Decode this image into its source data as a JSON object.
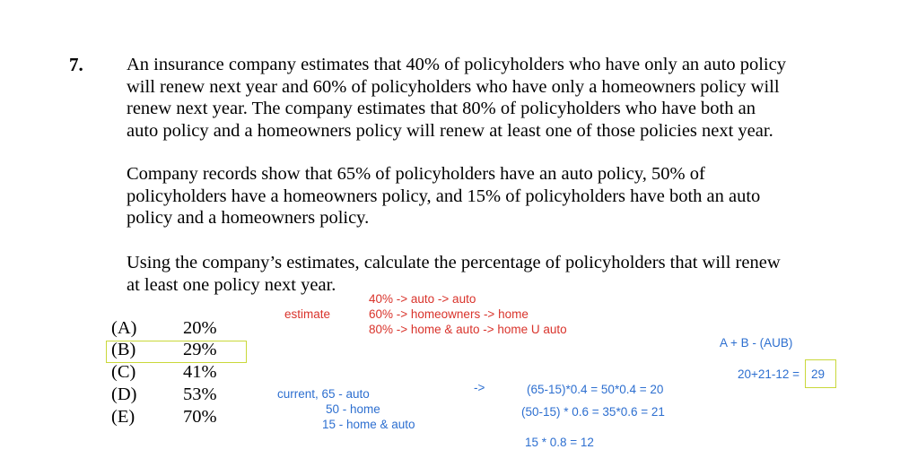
{
  "question": {
    "number": "7.",
    "paragraph1": [
      "An insurance company estimates that 40% of policyholders who have only an auto policy",
      "will renew next year and 60% of policyholders who have only a homeowners policy will",
      "renew next year.  The company estimates that 80% of policyholders who have both an",
      "auto policy and a homeowners policy will renew at least one of those policies next year."
    ],
    "paragraph2": [
      "Company records show that 65% of policyholders have an auto policy, 50% of",
      "policyholders have a homeowners policy, and 15% of policyholders have both an auto",
      "policy and a homeowners policy."
    ],
    "paragraph3": [
      "Using the company’s estimates, calculate the percentage of policyholders that will renew",
      "at least one policy next year."
    ]
  },
  "choices": [
    {
      "letter": "(A)",
      "value": "20%"
    },
    {
      "letter": "(B)",
      "value": "29%"
    },
    {
      "letter": "(C)",
      "value": "41%"
    },
    {
      "letter": "(D)",
      "value": "53%"
    },
    {
      "letter": "(E)",
      "value": "70%"
    }
  ],
  "annotations": {
    "estimate_label": "estimate",
    "estimate_lines": [
      "40% -> auto     -> auto",
      "60% -> homeowners -> home",
      "80% -> home & auto ->   home  U  auto"
    ],
    "formula": "A + B - (AUB)",
    "result_expr": "20+21-12 =",
    "result_value": "29",
    "current_lines": [
      "current, 65 - auto",
      "50 - home",
      "15  - home & auto"
    ],
    "arrow": "->",
    "calc_lines": [
      "(65-15)*0.4 =  50*0.4 =  20",
      "(50-15) * 0.6 =  35*0.6 =  21",
      "15 * 0.8 =  12"
    ]
  },
  "colors": {
    "annotation_red": "#d9332b",
    "annotation_blue": "#2d6fd0",
    "highlight": "#c9d83a"
  }
}
